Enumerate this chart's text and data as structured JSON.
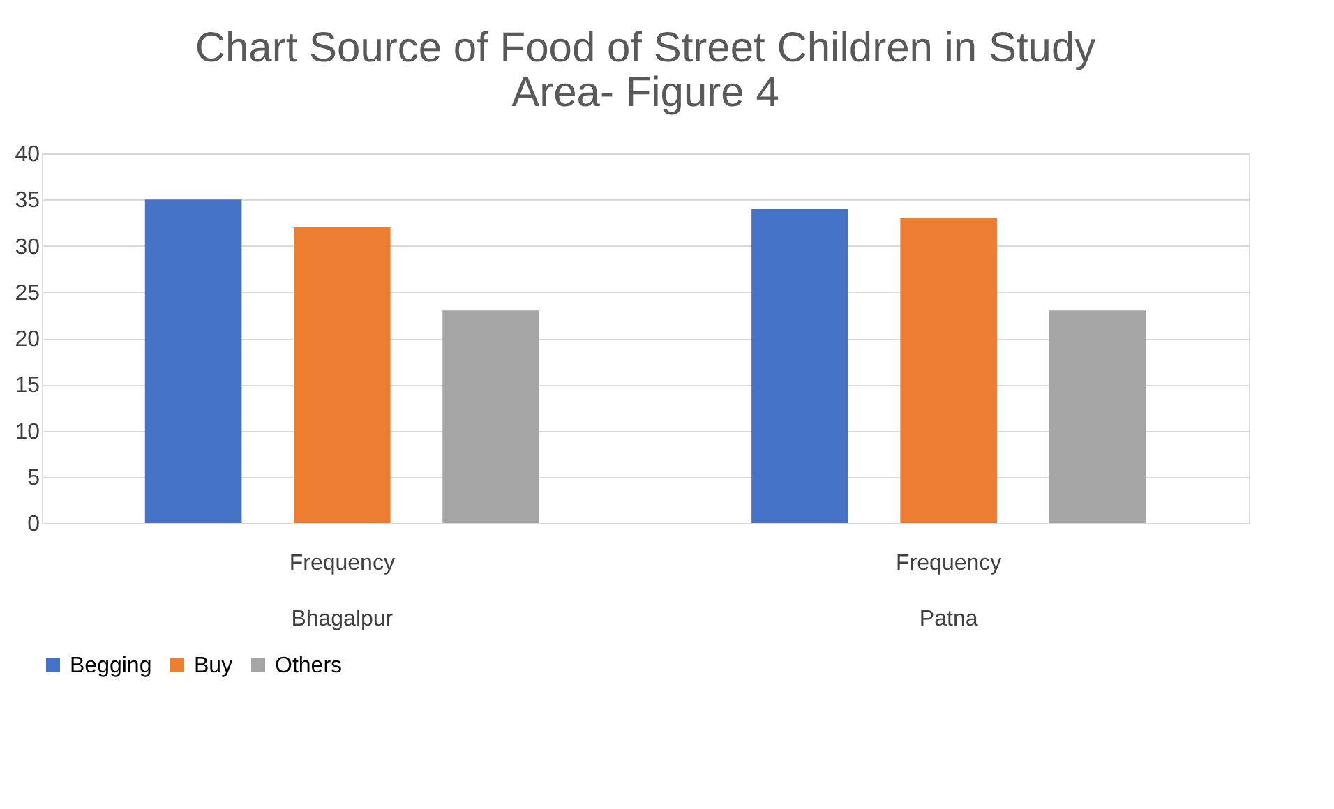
{
  "chart_data": {
    "type": "bar",
    "title": "Chart Source of Food of Street Children in Study Area- Figure 4",
    "categories": [
      "Frequency\nBhagalpur",
      "Frequency\nPatna"
    ],
    "series": [
      {
        "name": "Begging",
        "color": "#4472c4",
        "values": [
          35,
          34
        ]
      },
      {
        "name": "Buy",
        "color": "#ed7d31",
        "values": [
          32,
          33
        ]
      },
      {
        "name": "Others",
        "color": "#a5a5a5",
        "values": [
          23,
          23
        ]
      }
    ],
    "ylim": [
      0,
      40
    ],
    "yticks": [
      0,
      5,
      10,
      15,
      20,
      25,
      30,
      35,
      40
    ],
    "grid": "y",
    "legend": "bottom"
  }
}
